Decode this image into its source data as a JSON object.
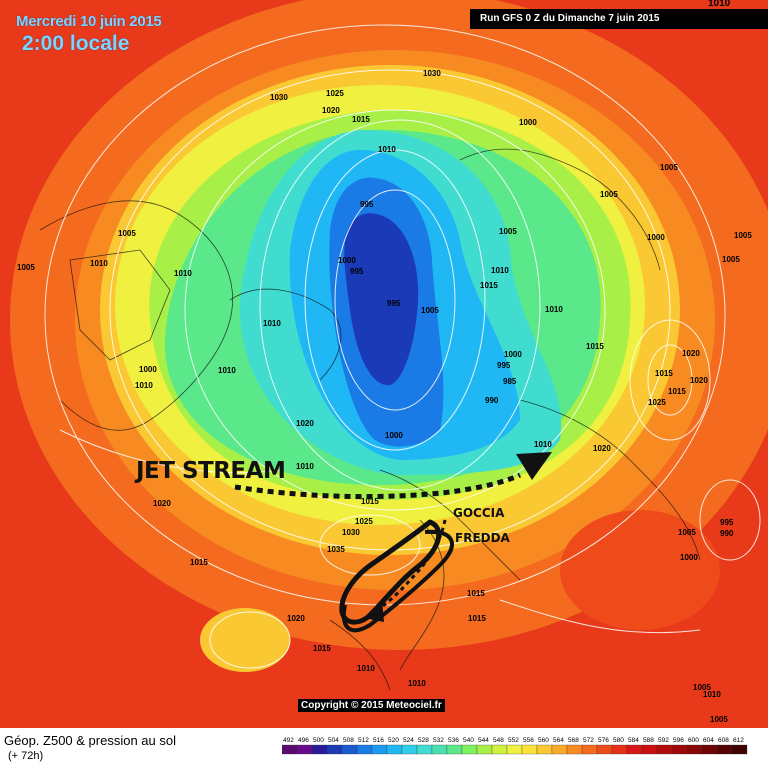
{
  "header": {
    "date": "Mercredi 10 juin 2015",
    "time": "2:00 locale",
    "run": "Run GFS 0 Z du Dimanche 7 juin 2015",
    "corner_value": "1010"
  },
  "copyright": "Copyright © 2015 Meteociel.fr",
  "legend": {
    "title": "Géop. Z500 & pression au sol",
    "subtitle": "(+ 72h)",
    "scale_values": [
      "492",
      "496",
      "500",
      "504",
      "508",
      "512",
      "516",
      "520",
      "524",
      "528",
      "532",
      "536",
      "540",
      "544",
      "548",
      "552",
      "556",
      "560",
      "564",
      "568",
      "572",
      "576",
      "580",
      "584",
      "588",
      "592",
      "596",
      "600",
      "604",
      "608",
      "612"
    ],
    "scale_colors": [
      "#5a0a6e",
      "#6a0a8a",
      "#2a1a9a",
      "#1a3ab8",
      "#1a5ad0",
      "#1a7ae6",
      "#1a9af0",
      "#20b8f4",
      "#30cfe8",
      "#40dcd0",
      "#4ae0b0",
      "#5ae88a",
      "#80f060",
      "#a8f048",
      "#d0f040",
      "#f0f040",
      "#fae23a",
      "#fac832",
      "#faaa2a",
      "#f88a22",
      "#f46a1e",
      "#ee4a1a",
      "#e63018",
      "#d81818",
      "#c81010",
      "#b40c0c",
      "#9e0808",
      "#880606",
      "#6e0404",
      "#560202",
      "#3e0000"
    ]
  },
  "isobars": [
    {
      "label": "1030",
      "slot": "a"
    },
    {
      "label": "1025",
      "slot": "b"
    },
    {
      "label": "1020",
      "slot": "c"
    },
    {
      "label": "1015",
      "slot": "d"
    },
    {
      "label": "1010",
      "slot": "e"
    },
    {
      "label": "1030",
      "slot": "f"
    },
    {
      "label": "1000",
      "slot": "g"
    },
    {
      "label": "1005",
      "slot": "h"
    },
    {
      "label": "1005",
      "slot": "i"
    },
    {
      "label": "1005",
      "slot": "j"
    },
    {
      "label": "1005",
      "slot": "k"
    },
    {
      "label": "1010",
      "slot": "l"
    },
    {
      "label": "1010",
      "slot": "m"
    },
    {
      "label": "1005",
      "slot": "n"
    },
    {
      "label": "1010",
      "slot": "o"
    },
    {
      "label": "1000",
      "slot": "p"
    },
    {
      "label": "1005",
      "slot": "q"
    },
    {
      "label": "995",
      "slot": "r"
    },
    {
      "label": "1000",
      "slot": "s"
    },
    {
      "label": "995",
      "slot": "t"
    },
    {
      "label": "1005",
      "slot": "u"
    },
    {
      "label": "995",
      "slot": "v"
    },
    {
      "label": "1010",
      "slot": "w"
    },
    {
      "label": "1015",
      "slot": "x"
    },
    {
      "label": "1005",
      "slot": "y"
    },
    {
      "label": "1010",
      "slot": "z"
    },
    {
      "label": "1000",
      "slot": "aa"
    },
    {
      "label": "1010",
      "slot": "ab"
    },
    {
      "label": "1010",
      "slot": "ac"
    },
    {
      "label": "1015",
      "slot": "ad"
    },
    {
      "label": "1000",
      "slot": "ae"
    },
    {
      "label": "995",
      "slot": "af"
    },
    {
      "label": "985",
      "slot": "ag"
    },
    {
      "label": "990",
      "slot": "ah"
    },
    {
      "label": "1015",
      "slot": "ai"
    },
    {
      "label": "1020",
      "slot": "aj"
    },
    {
      "label": "1020",
      "slot": "ak"
    },
    {
      "label": "1025",
      "slot": "al"
    },
    {
      "label": "1015",
      "slot": "am"
    },
    {
      "label": "1020",
      "slot": "an"
    },
    {
      "label": "1000",
      "slot": "ao"
    },
    {
      "label": "1010",
      "slot": "ap"
    },
    {
      "label": "1010",
      "slot": "aq"
    },
    {
      "label": "1020",
      "slot": "ar"
    },
    {
      "label": "1020",
      "slot": "as"
    },
    {
      "label": "1015",
      "slot": "at"
    },
    {
      "label": "1030",
      "slot": "au"
    },
    {
      "label": "1025",
      "slot": "av"
    },
    {
      "label": "1035",
      "slot": "aw"
    },
    {
      "label": "1005",
      "slot": "ax"
    },
    {
      "label": "995",
      "slot": "ay"
    },
    {
      "label": "990",
      "slot": "az"
    },
    {
      "label": "1000",
      "slot": "ba"
    },
    {
      "label": "1015",
      "slot": "bb"
    },
    {
      "label": "1015",
      "slot": "bc"
    },
    {
      "label": "1020",
      "slot": "bd"
    },
    {
      "label": "1015",
      "slot": "be"
    },
    {
      "label": "1015",
      "slot": "bf"
    },
    {
      "label": "1010",
      "slot": "bg"
    },
    {
      "label": "1010",
      "slot": "bh"
    },
    {
      "label": "1005",
      "slot": "bi"
    },
    {
      "label": "1010",
      "slot": "bj"
    },
    {
      "label": "1005",
      "slot": "bk"
    }
  ],
  "annotations": {
    "jet_stream": "JET STREAM",
    "goccia": "GOCCIA",
    "fredda": "FREDDA"
  }
}
